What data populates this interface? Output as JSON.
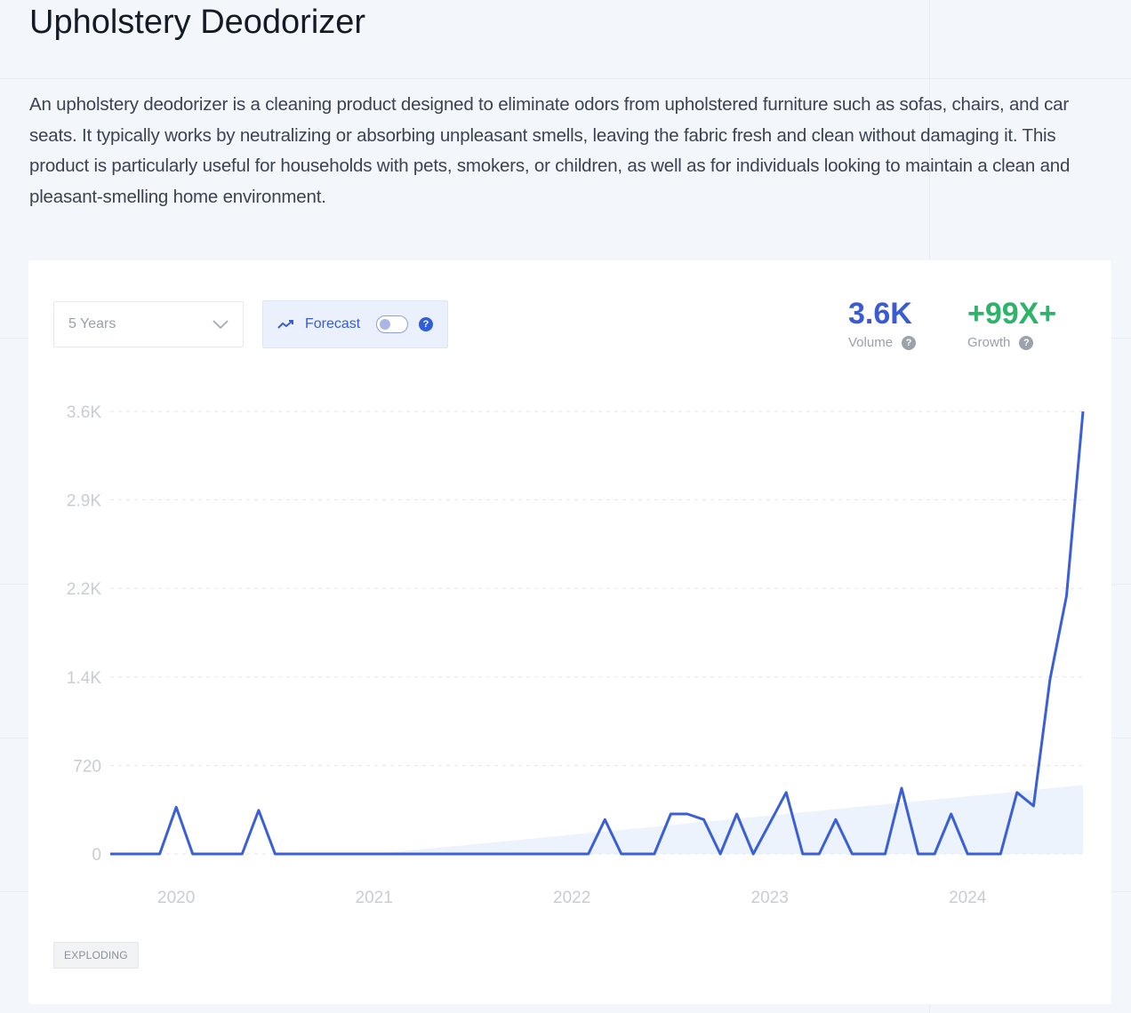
{
  "title": "Upholstery Deodorizer",
  "description": "An upholstery deodorizer is a cleaning product designed to eliminate odors from upholstered furniture such as sofas, chairs, and car seats. It typically works by neutralizing or absorbing unpleasant smells, leaving the fabric fresh and clean without damaging it. This product is particularly useful for households with pets, smokers, or children, as well as for individuals looking to maintain a clean and pleasant-smelling home environment.",
  "controls": {
    "range_select": "5 Years",
    "forecast_label": "Forecast",
    "forecast_enabled": false,
    "help": "?"
  },
  "stats": {
    "volume": {
      "value": "3.6K",
      "label": "Volume",
      "color": "#3b5bd0"
    },
    "growth": {
      "value": "+99X+",
      "label": "Growth",
      "color": "#2fb36a"
    }
  },
  "badge": "EXPLODING",
  "colors": {
    "line": "#3a5fd6",
    "trend_fill": "#e8f0fb",
    "grid": "#e3e6ea"
  },
  "chart_data": {
    "type": "line",
    "x_start": "2019-09",
    "x_interval": "month",
    "x_tick_labels": [
      "2020",
      "2021",
      "2022",
      "2023",
      "2024"
    ],
    "y_tick_labels": [
      "0",
      "720",
      "1.4K",
      "2.2K",
      "2.9K",
      "3.6K"
    ],
    "y_ticks": [
      0,
      720,
      1440,
      2160,
      2880,
      3600
    ],
    "ylim": [
      0,
      3600
    ],
    "grid": "horizontal-dashed",
    "values": [
      0,
      0,
      0,
      0,
      380,
      0,
      0,
      0,
      0,
      355,
      0,
      0,
      0,
      0,
      0,
      0,
      0,
      0,
      0,
      0,
      0,
      0,
      0,
      0,
      0,
      0,
      0,
      0,
      0,
      0,
      280,
      0,
      0,
      0,
      325,
      325,
      280,
      0,
      325,
      0,
      250,
      500,
      0,
      0,
      280,
      0,
      0,
      0,
      535,
      0,
      0,
      325,
      0,
      0,
      0,
      500,
      390,
      1420,
      2100,
      3600
    ],
    "trend": {
      "start_index": 16,
      "start_value": 0,
      "end_index": 59,
      "end_value": 560
    }
  }
}
